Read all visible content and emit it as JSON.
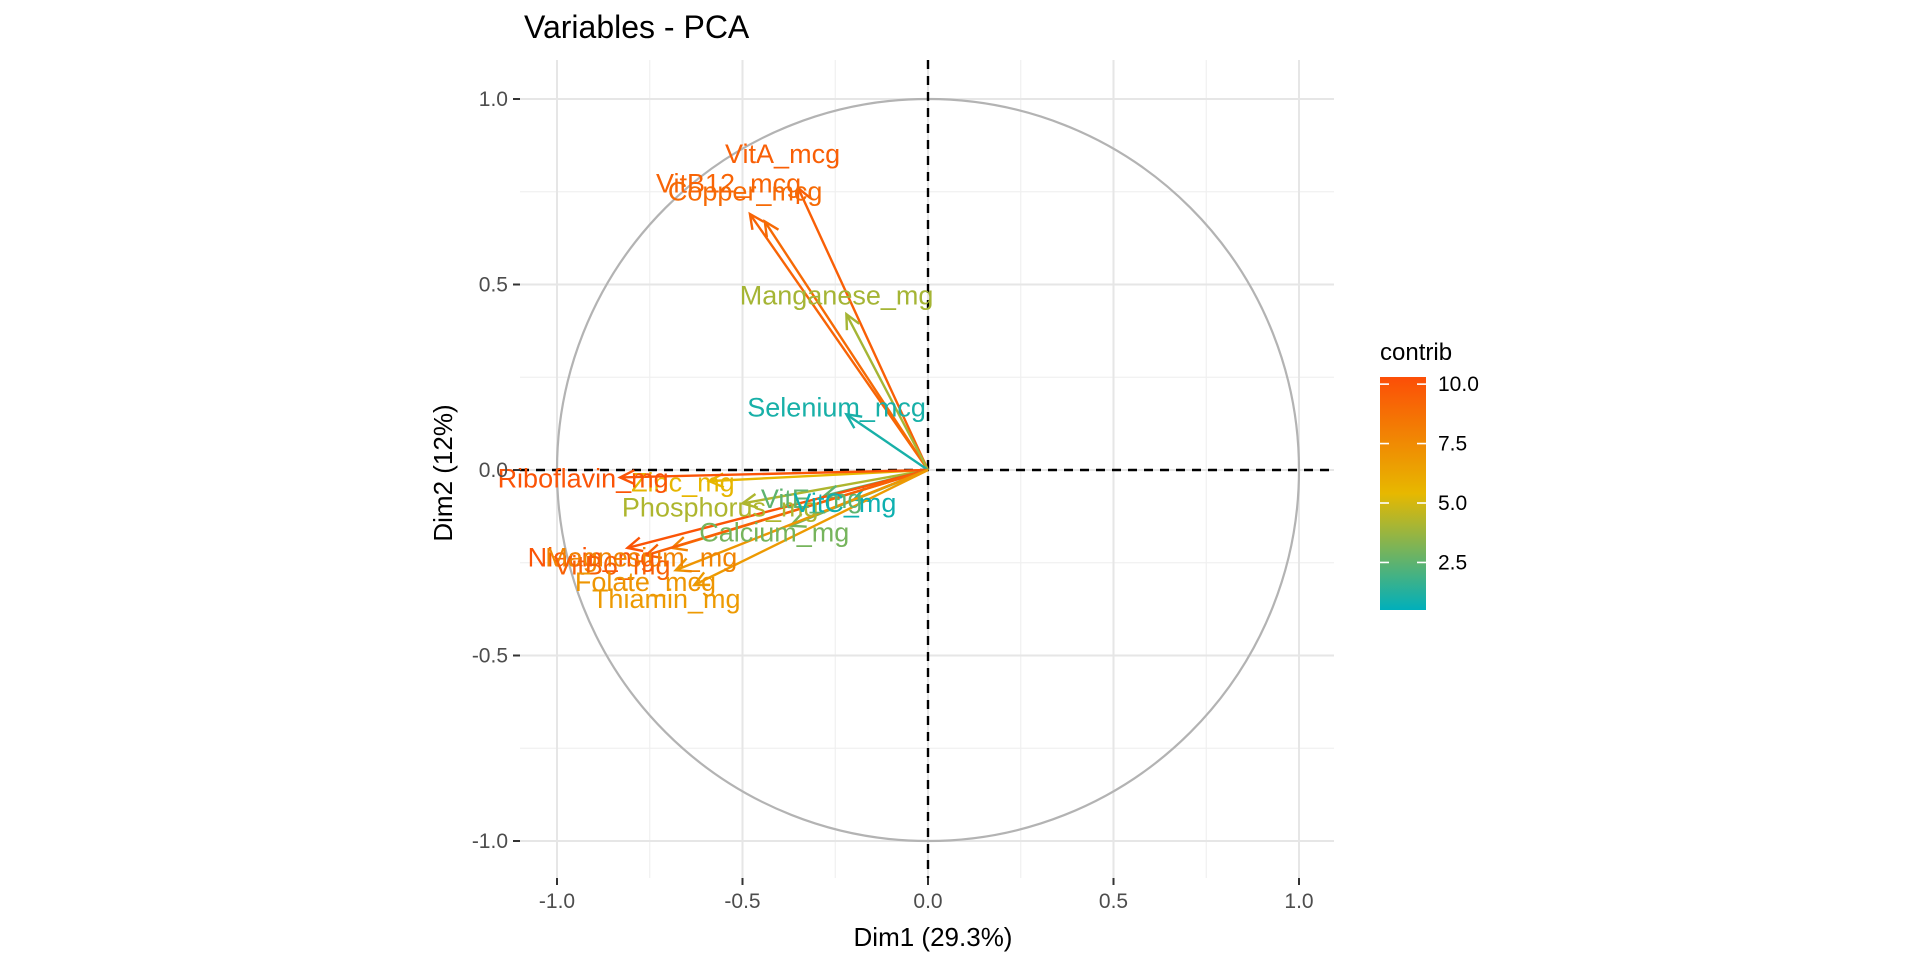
{
  "chart_data": {
    "type": "scatter",
    "title": "Variables - PCA",
    "xlabel": "Dim1 (29.3%)",
    "ylabel": "Dim2 (12%)",
    "xlim": [
      -1.05,
      1.05
    ],
    "ylim": [
      -1.1,
      1.1
    ],
    "x_ticks": [
      -1.0,
      -0.5,
      0.0,
      0.5,
      1.0
    ],
    "y_ticks": [
      -1.0,
      -0.5,
      0.0,
      0.5,
      1.0
    ],
    "x_tick_labels": [
      "-1.0",
      "-0.5",
      "0.0",
      "0.5",
      "1.0"
    ],
    "y_tick_labels": [
      "-1.0",
      "-0.5",
      "0.0",
      "0.5",
      "1.0"
    ],
    "grid": true,
    "unit_circle": true,
    "reference_lines": {
      "x": 0,
      "y": 0,
      "style": "dashed"
    },
    "legend": {
      "title": "contrib",
      "placement": "right",
      "ticks": [
        2.5,
        5.0,
        7.5,
        10.0
      ],
      "tick_labels": [
        "2.5",
        "5.0",
        "7.5",
        "10.0"
      ],
      "range": [
        0.5,
        10.3
      ],
      "colors": [
        "#00AFBB",
        "#E7B800",
        "#FC4E07"
      ]
    },
    "variables": [
      {
        "name": "VitA_mcg",
        "x": -0.35,
        "y": 0.76,
        "contrib": 9.5
      },
      {
        "name": "VitB12_mcg",
        "x": -0.48,
        "y": 0.69,
        "contrib": 9.3
      },
      {
        "name": "Copper_mcg",
        "x": -0.44,
        "y": 0.67,
        "contrib": 9.0
      },
      {
        "name": "Manganese_mg",
        "x": -0.22,
        "y": 0.42,
        "contrib": 4.0
      },
      {
        "name": "Selenium_mcg",
        "x": -0.22,
        "y": 0.15,
        "contrib": 1.0
      },
      {
        "name": "Zinc_mg",
        "x": -0.59,
        "y": -0.03,
        "contrib": 5.5
      },
      {
        "name": "Phosphorus_mg",
        "x": -0.5,
        "y": -0.09,
        "contrib": 4.2
      },
      {
        "name": "Riboflavin_mg",
        "x": -0.83,
        "y": -0.02,
        "contrib": 10.0
      },
      {
        "name": "VitE_mg",
        "x": -0.28,
        "y": -0.07,
        "contrib": 2.5
      },
      {
        "name": "VitC_mg",
        "x": -0.2,
        "y": -0.08,
        "contrib": 0.8
      },
      {
        "name": "Niacin_mg",
        "x": -0.81,
        "y": -0.21,
        "contrib": 10.0
      },
      {
        "name": "Magnesium_mg",
        "x": -0.69,
        "y": -0.21,
        "contrib": 7.8
      },
      {
        "name": "VitB6_mg",
        "x": -0.76,
        "y": -0.23,
        "contrib": 9.4
      },
      {
        "name": "Calcium_mg",
        "x": -0.37,
        "y": -0.15,
        "contrib": 3.0
      },
      {
        "name": "Folate_mcg",
        "x": -0.68,
        "y": -0.27,
        "contrib": 7.0
      },
      {
        "name": "Thiamin_mg",
        "x": -0.63,
        "y": -0.31,
        "contrib": 6.8
      }
    ]
  }
}
